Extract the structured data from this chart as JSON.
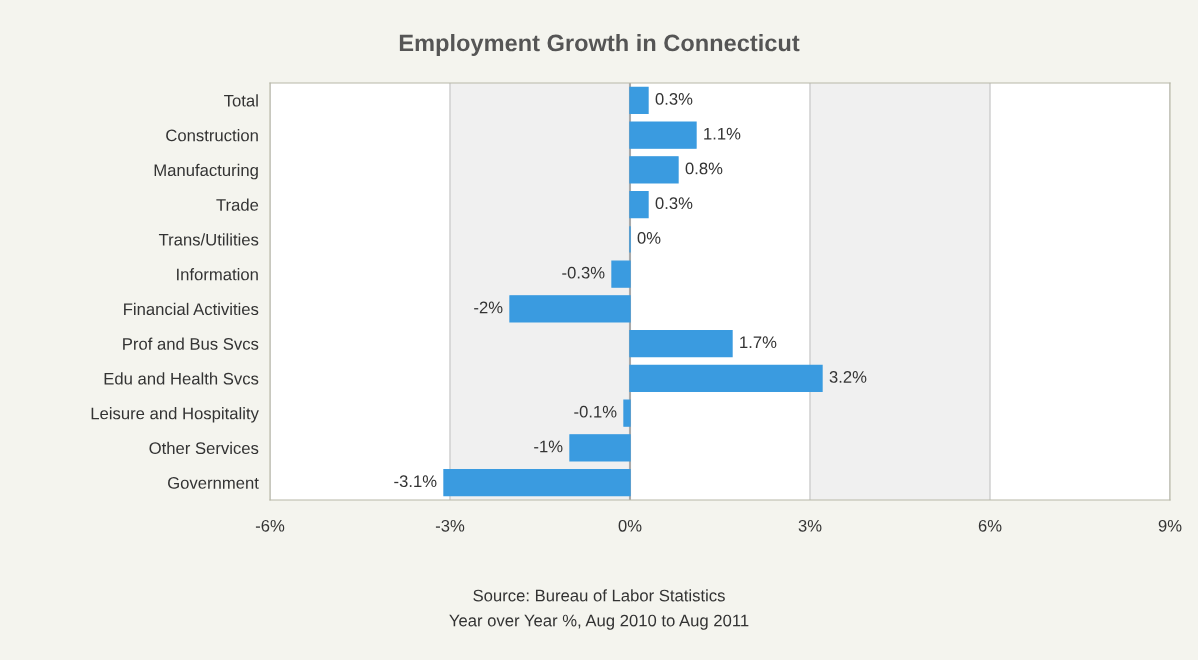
{
  "chart_data": {
    "type": "bar",
    "orientation": "horizontal",
    "title": "Employment Growth in Connecticut",
    "categories": [
      "Total",
      "Construction",
      "Manufacturing",
      "Trade",
      "Trans/Utilities",
      "Information",
      "Financial Activities",
      "Prof and Bus Svcs",
      "Edu and Health Svcs",
      "Leisure and Hospitality",
      "Other Services",
      "Government"
    ],
    "values": [
      0.3,
      1.1,
      0.8,
      0.3,
      0,
      -0.3,
      -2,
      1.7,
      3.2,
      -0.1,
      -1,
      -3.1
    ],
    "value_labels": [
      "0.3%",
      "1.1%",
      "0.8%",
      "0.3%",
      "0%",
      "-0.3%",
      "-2%",
      "1.7%",
      "3.2%",
      "-0.1%",
      "-1%",
      "-3.1%"
    ],
    "color": "#3a9be0",
    "xlim": [
      -6,
      9
    ],
    "xticks": [
      {
        "value": -6,
        "label": "-6%"
      },
      {
        "value": -3,
        "label": "-3%"
      },
      {
        "value": 0,
        "label": "0%"
      },
      {
        "value": 3,
        "label": "3%"
      },
      {
        "value": 6,
        "label": "6%"
      },
      {
        "value": 9,
        "label": "9%"
      }
    ],
    "grid": "x",
    "bands": [
      {
        "axis": "x",
        "from": -3,
        "to": 0,
        "color": "#f0f0f0"
      },
      {
        "axis": "x",
        "from": 3,
        "to": 6,
        "color": "#f0f0f0"
      }
    ],
    "annotations": [
      "Source: Bureau of Labor Statistics",
      "Year over Year %, Aug 2010 to Aug 2011"
    ]
  }
}
